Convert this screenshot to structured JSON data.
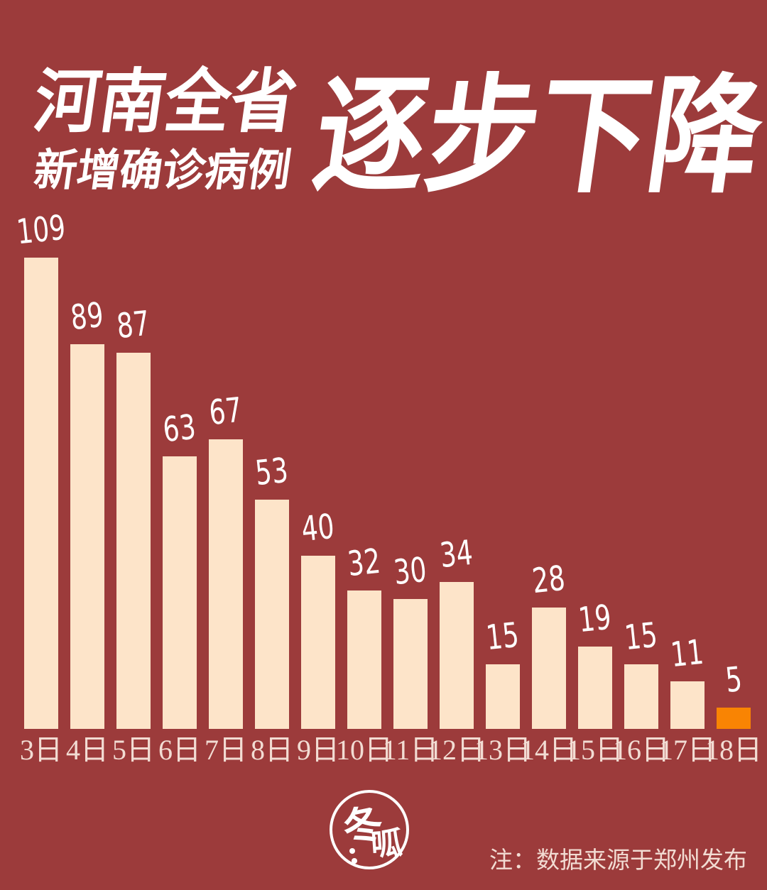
{
  "canvas": {
    "background_color": "#9C3B3B"
  },
  "header": {
    "title_line1": "河南全省",
    "title_line2": "新增确诊病例",
    "title_emphasis": "逐步下降",
    "text_color": "#FFFFFF"
  },
  "chart_data": {
    "type": "bar",
    "title": "河南全省新增确诊病例逐步下降",
    "categories": [
      "3日",
      "4日",
      "5日",
      "6日",
      "7日",
      "8日",
      "9日",
      "10日",
      "11日",
      "12日",
      "13日",
      "14日",
      "15日",
      "16日",
      "17日",
      "18日"
    ],
    "values": [
      109,
      89,
      87,
      63,
      67,
      53,
      40,
      32,
      30,
      34,
      15,
      28,
      19,
      15,
      11,
      5
    ],
    "xlabel": "",
    "ylabel": "",
    "ylim": [
      0,
      109
    ],
    "grid": false,
    "legend": false,
    "value_labels_shown": true,
    "bar_color": "#FDE4C9",
    "highlight_index": 15,
    "highlight_color": "#F98403",
    "value_label_color": "#FFFFFF",
    "axis_label_color": "#F2DCD3"
  },
  "footer": {
    "logo": {
      "char1": "冬",
      "char2": "呱"
    },
    "note": "注：数据来源于郑州发布"
  }
}
